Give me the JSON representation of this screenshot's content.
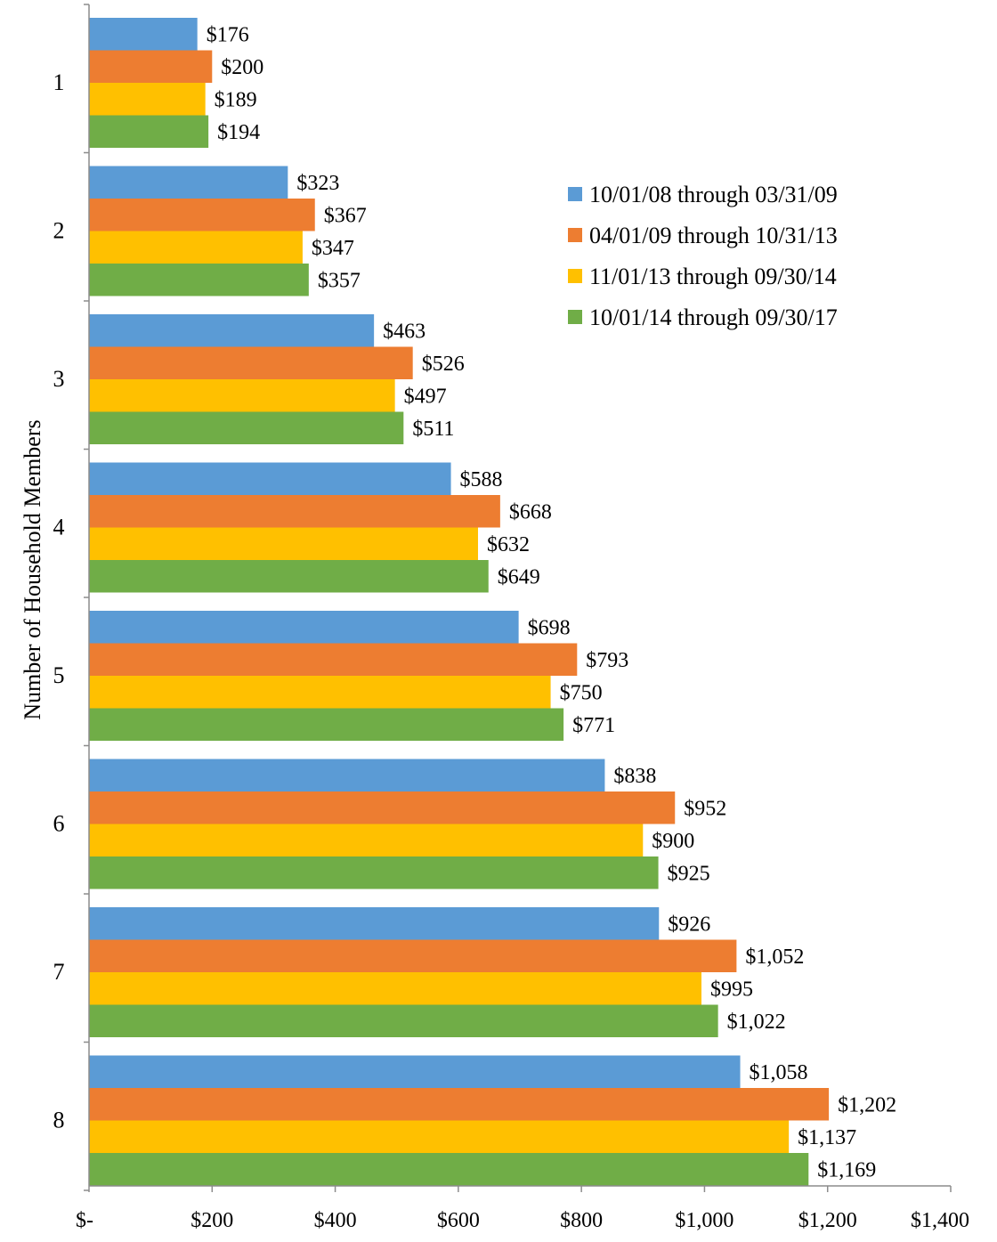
{
  "chart_data": {
    "type": "bar",
    "orientation": "horizontal",
    "title": "",
    "xlabel": "",
    "ylabel": "Number of Household Members",
    "categories": [
      "1",
      "2",
      "3",
      "4",
      "5",
      "6",
      "7",
      "8"
    ],
    "xlim": [
      0,
      1400
    ],
    "x_ticks": [
      {
        "value": 0,
        "label": "$-"
      },
      {
        "value": 200,
        "label": "$200"
      },
      {
        "value": 400,
        "label": "$400"
      },
      {
        "value": 600,
        "label": "$600"
      },
      {
        "value": 800,
        "label": "$800"
      },
      {
        "value": 1000,
        "label": "$1,000"
      },
      {
        "value": 1200,
        "label": "$1,200"
      },
      {
        "value": 1400,
        "label": "$1,400"
      }
    ],
    "grid": false,
    "legend_position": "top-right",
    "series": [
      {
        "name": "10/01/08 through 03/31/09",
        "color": "#5b9bd5",
        "values": [
          176,
          323,
          463,
          588,
          698,
          838,
          926,
          1058
        ],
        "labels": [
          "$176",
          "$323",
          "$463",
          "$588",
          "$698",
          "$838",
          "$926",
          "$1,058"
        ]
      },
      {
        "name": "04/01/09 through 10/31/13",
        "color": "#ed7d31",
        "values": [
          200,
          367,
          526,
          668,
          793,
          952,
          1052,
          1202
        ],
        "labels": [
          "$200",
          "$367",
          "$526",
          "$668",
          "$793",
          "$952",
          "$1,052",
          "$1,202"
        ]
      },
      {
        "name": "11/01/13 through 09/30/14",
        "color": "#ffc000",
        "values": [
          189,
          347,
          497,
          632,
          750,
          900,
          995,
          1137
        ],
        "labels": [
          "$189",
          "$347",
          "$497",
          "$632",
          "$750",
          "$900",
          "$995",
          "$1,137"
        ]
      },
      {
        "name": "10/01/14 through 09/30/17",
        "color": "#70ad47",
        "values": [
          194,
          357,
          511,
          649,
          771,
          925,
          1022,
          1169
        ],
        "labels": [
          "$194",
          "$357",
          "$511",
          "$649",
          "$771",
          "$925",
          "$1,022",
          "$1,169"
        ]
      }
    ]
  }
}
